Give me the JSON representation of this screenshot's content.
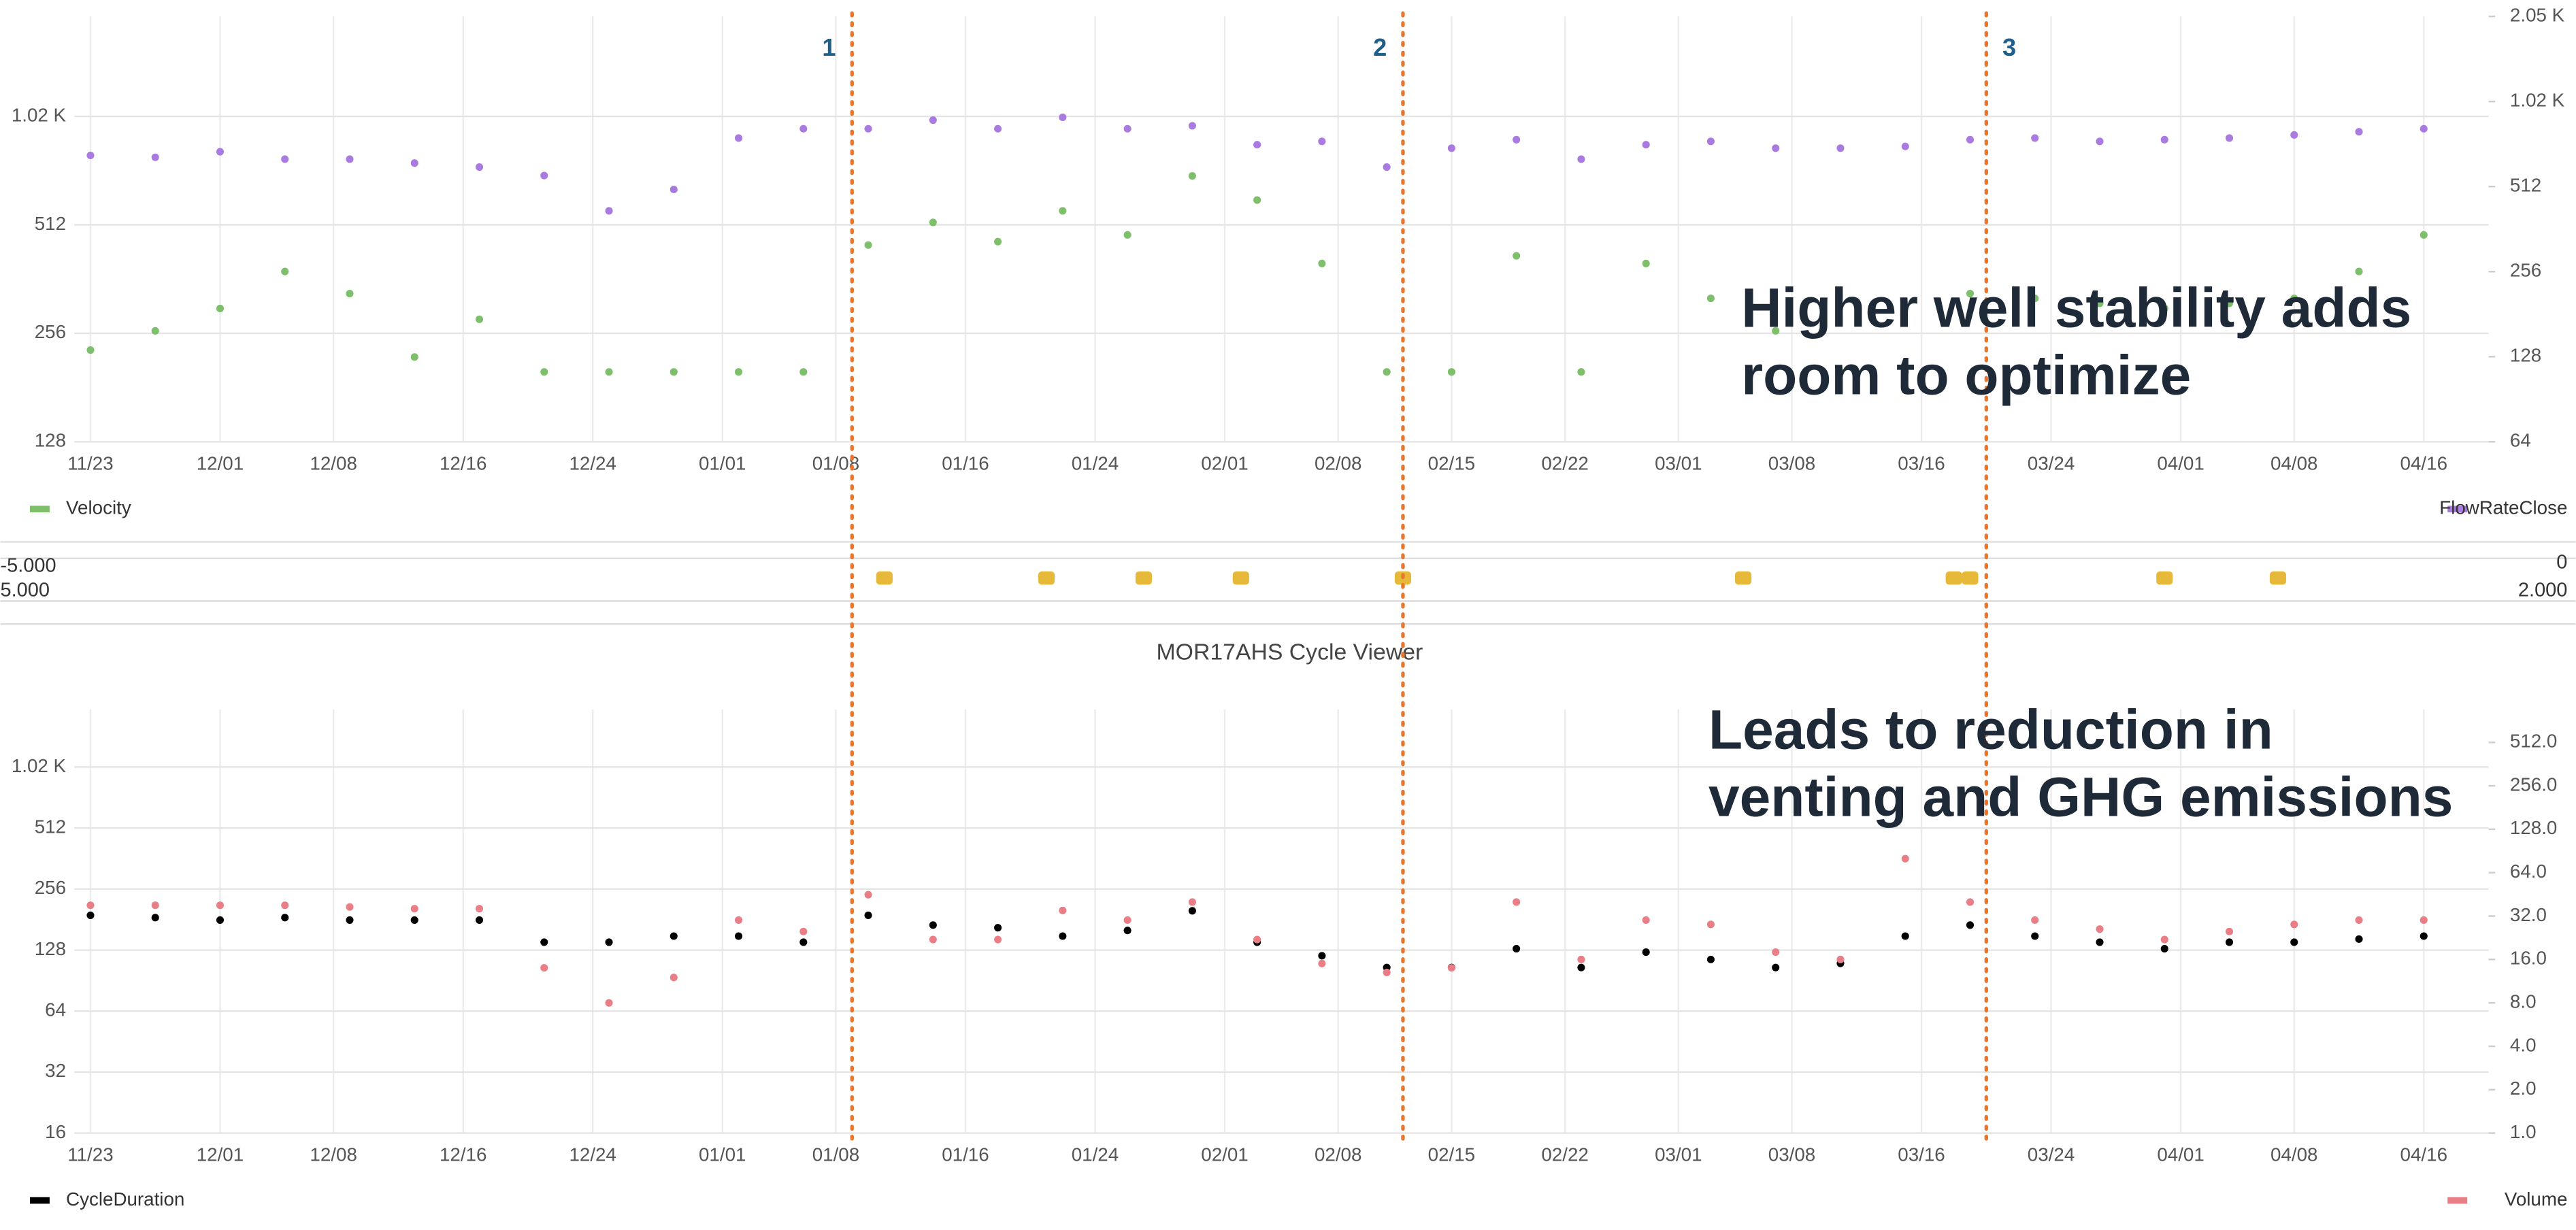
{
  "chart_data": [
    {
      "type": "scatter",
      "log_scale": true,
      "grid": true,
      "xlim": [
        "11/22",
        "04/20"
      ],
      "xticks": [
        "11/23",
        "12/01",
        "12/08",
        "12/16",
        "12/24",
        "01/01",
        "01/08",
        "01/16",
        "01/24",
        "02/01",
        "02/08",
        "02/15",
        "02/22",
        "03/01",
        "03/08",
        "03/16",
        "03/24",
        "04/01",
        "04/08",
        "04/16"
      ],
      "ylim": [
        128,
        1940
      ],
      "yticks": [
        128,
        256,
        512,
        {
          "value": 1024,
          "label": "1.02 K"
        }
      ],
      "y2lim": [
        64,
        2048
      ],
      "y2ticks": [
        64,
        128,
        256,
        512,
        {
          "value": 1024,
          "label": "1.02 K"
        },
        {
          "value": 2048,
          "label": "2.05 K"
        }
      ],
      "x": [
        "11/23",
        "11/27",
        "12/01",
        "12/05",
        "12/09",
        "12/13",
        "12/17",
        "12/21",
        "12/25",
        "12/29",
        "01/02",
        "01/06",
        "01/10",
        "01/14",
        "01/18",
        "01/22",
        "01/26",
        "01/30",
        "02/03",
        "02/07",
        "02/11",
        "02/15",
        "02/19",
        "02/23",
        "02/27",
        "03/03",
        "03/07",
        "03/11",
        "03/15",
        "03/19",
        "03/23",
        "03/27",
        "03/31",
        "04/04",
        "04/08",
        "04/12",
        "04/16"
      ],
      "series": [
        {
          "name": "Velocity",
          "color": "#7dbf6a",
          "values": [
            230,
            260,
            300,
            380,
            330,
            220,
            280,
            200,
            200,
            200,
            200,
            200,
            450,
            520,
            460,
            560,
            480,
            700,
            600,
            400,
            200,
            200,
            420,
            200,
            400,
            320,
            260,
            200,
            200,
            330,
            320,
            310,
            300,
            310,
            320,
            380,
            480
          ]
        },
        {
          "name": "FlowRateClose",
          "color": "#a97be0",
          "axis": "y2",
          "values": [
            660,
            650,
            680,
            640,
            640,
            620,
            600,
            560,
            420,
            500,
            760,
            820,
            820,
            880,
            820,
            900,
            820,
            840,
            720,
            740,
            600,
            700,
            750,
            640,
            720,
            740,
            700,
            700,
            710,
            750,
            760,
            740,
            750,
            760,
            780,
            800,
            820
          ]
        }
      ]
    },
    {
      "type": "events",
      "xlim": [
        "11/22",
        "04/20"
      ],
      "ylim": [
        5,
        -5
      ],
      "yticks": [
        {
          "value": -5,
          "label": "-5.000"
        },
        {
          "value": 5,
          "label": "5.000"
        }
      ],
      "y2lim": [
        2,
        0
      ],
      "y2ticks": [
        0,
        {
          "value": 2,
          "label": "2.000"
        }
      ],
      "x": [
        "01/11",
        "01/21",
        "01/27",
        "02/02",
        "02/12",
        "03/05",
        "03/18",
        "03/19",
        "03/31",
        "04/07"
      ],
      "series": [
        {
          "color": "#e6b93a",
          "values": [
            0,
            0,
            0,
            0,
            0,
            0,
            0,
            0,
            0,
            0
          ]
        }
      ]
    },
    {
      "type": "scatter",
      "log_scale": true,
      "grid": true,
      "title": "MOR17AHS Cycle Viewer",
      "xlim": [
        "11/22",
        "04/20"
      ],
      "xticks": [
        "11/23",
        "12/01",
        "12/08",
        "12/16",
        "12/24",
        "01/01",
        "01/08",
        "01/16",
        "01/24",
        "02/01",
        "02/08",
        "02/15",
        "02/22",
        "03/01",
        "03/08",
        "03/16",
        "03/24",
        "04/01",
        "04/08",
        "04/16"
      ],
      "ylim": [
        16,
        1970
      ],
      "yticks": [
        16,
        32,
        64,
        128,
        256,
        512,
        {
          "value": 1024,
          "label": "1.02 K"
        }
      ],
      "y2lim": [
        1,
        867
      ],
      "y2ticks": [
        {
          "value": 1,
          "label": "1.0"
        },
        {
          "value": 2,
          "label": "2.0"
        },
        {
          "value": 4,
          "label": "4.0"
        },
        {
          "value": 8,
          "label": "8.0"
        },
        {
          "value": 16,
          "label": "16.0"
        },
        {
          "value": 32,
          "label": "32.0"
        },
        {
          "value": 64,
          "label": "64.0"
        },
        {
          "value": 128,
          "label": "128.0"
        },
        {
          "value": 256,
          "label": "256.0"
        },
        {
          "value": 512,
          "label": "512.0"
        }
      ],
      "x": [
        "11/23",
        "11/27",
        "12/01",
        "12/05",
        "12/09",
        "12/13",
        "12/17",
        "12/21",
        "12/25",
        "12/29",
        "01/02",
        "01/06",
        "01/10",
        "01/14",
        "01/18",
        "01/22",
        "01/26",
        "01/30",
        "02/03",
        "02/07",
        "02/11",
        "02/15",
        "02/19",
        "02/23",
        "02/27",
        "03/03",
        "03/07",
        "03/11",
        "03/15",
        "03/19",
        "03/23",
        "03/27",
        "03/31",
        "04/04",
        "04/08",
        "04/12",
        "04/16"
      ],
      "series": [
        {
          "name": "CycleDuration",
          "color": "#000000",
          "values": [
            190,
            185,
            180,
            185,
            180,
            180,
            180,
            140,
            140,
            150,
            150,
            140,
            190,
            170,
            165,
            150,
            160,
            200,
            140,
            120,
            105,
            105,
            130,
            105,
            125,
            115,
            105,
            110,
            150,
            170,
            150,
            140,
            130,
            140,
            140,
            145,
            150
          ]
        },
        {
          "name": "Volume",
          "color": "#ea7e86",
          "axis": "y2",
          "values": [
            38,
            38,
            38,
            38,
            37,
            36,
            36,
            14,
            8,
            12,
            30,
            25,
            45,
            22,
            22,
            35,
            30,
            40,
            22,
            15,
            13,
            14,
            40,
            16,
            30,
            28,
            18,
            16,
            80,
            40,
            30,
            26,
            22,
            25,
            28,
            30,
            30
          ]
        }
      ]
    }
  ],
  "markers": [
    {
      "label": "1",
      "x": "01/09"
    },
    {
      "label": "2",
      "x": "02/12"
    },
    {
      "label": "3",
      "x": "03/20"
    }
  ],
  "notes": [
    [
      "Higher well stability adds",
      "room to optimize"
    ],
    [
      "Leads to reduction in",
      "venting and GHG emissions"
    ]
  ]
}
